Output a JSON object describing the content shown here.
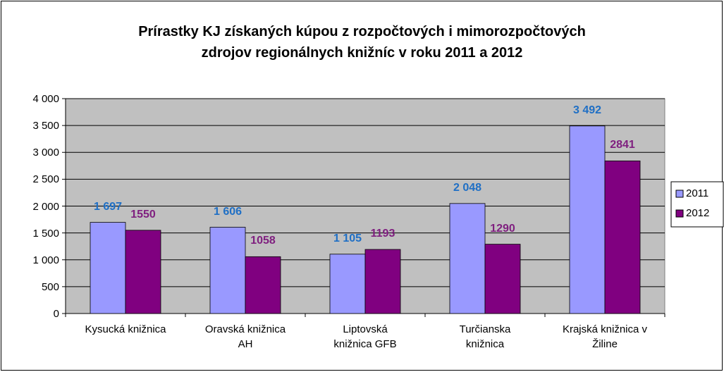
{
  "chart_data": {
    "type": "bar",
    "title": "Prírastky KJ získaných kúpou z rozpočtových i mimorozpočtových\nzdrojov regionálnych knižníc  v roku 2011 a 2012",
    "categories": [
      "Kysucká knižnica",
      "Oravská knižnica\nAH",
      "Liptovská\nknižnica GFB",
      "Turčianska\nknižnica",
      "Krajská knižnica v\nŽiline"
    ],
    "series": [
      {
        "name": "2011",
        "color": "#9999ff",
        "label_color": "#1f6fc5",
        "values": [
          1697,
          1606,
          1105,
          2048,
          3492
        ],
        "value_labels": [
          "1 697",
          "1 606",
          "1 105",
          "2 048",
          "3 492"
        ]
      },
      {
        "name": "2012",
        "color": "#800080",
        "label_color": "#7f1f7f",
        "values": [
          1550,
          1058,
          1193,
          1290,
          2841
        ]
      }
    ],
    "ylim": [
      0,
      4000
    ],
    "yticks": [
      0,
      500,
      {
        "value": 1000,
        "label": "1 000"
      },
      {
        "value": 1500,
        "label": "1 500"
      },
      {
        "value": 2000,
        "label": "2 000"
      },
      {
        "value": 2500,
        "label": "2 500"
      },
      {
        "value": 3000,
        "label": "3 000"
      },
      {
        "value": 3500,
        "label": "3 500"
      },
      {
        "value": 4000,
        "label": "4 000"
      }
    ],
    "grid": true,
    "legend": "right",
    "plot_background": "#c0c0c0"
  }
}
